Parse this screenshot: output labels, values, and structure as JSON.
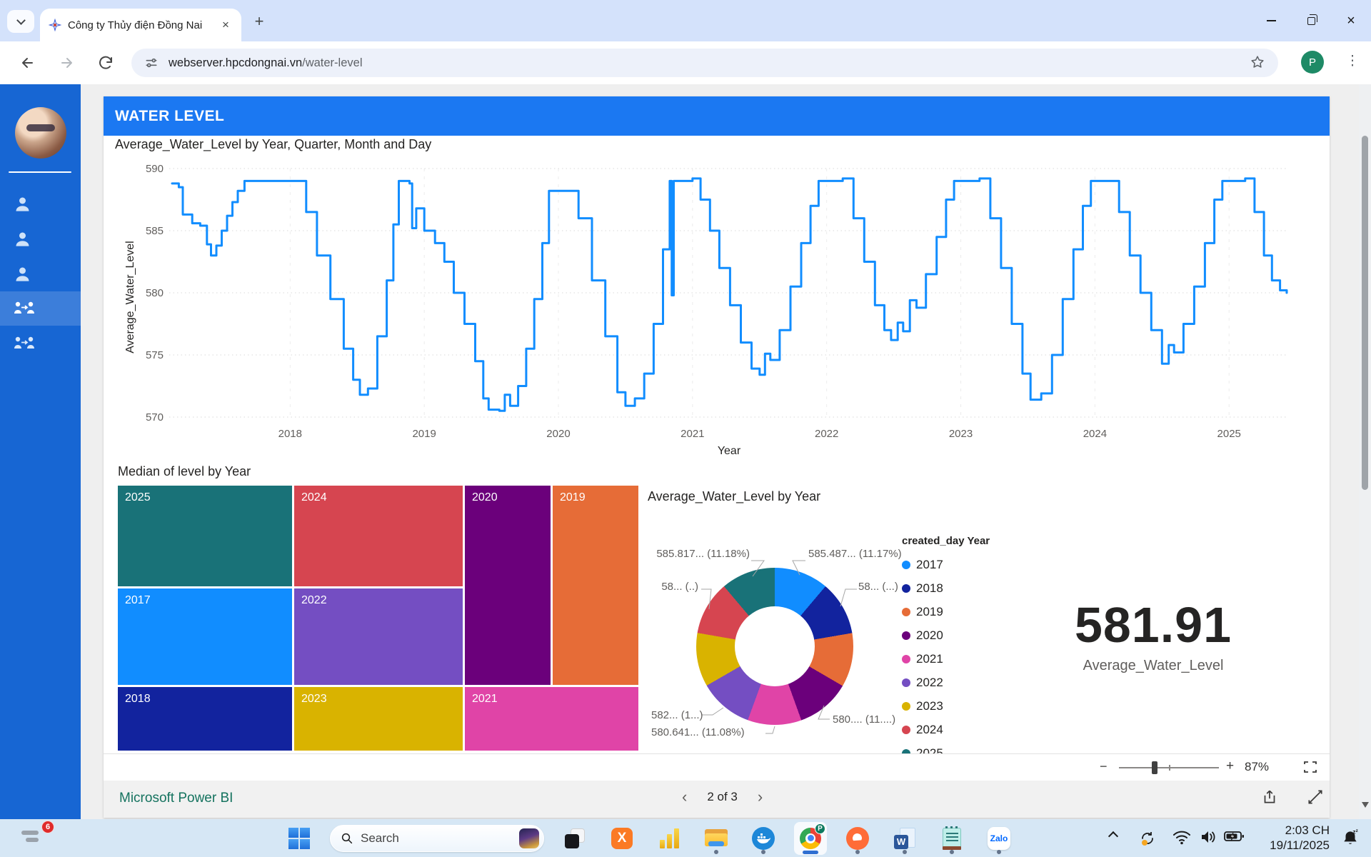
{
  "browser": {
    "tab": {
      "title": "Công ty Thủy điện Đồng Nai"
    },
    "url": {
      "host": "webserver.hpcdongnai.vn",
      "path": "/water-level"
    },
    "profile_initial": "P"
  },
  "icons": {
    "close": "×",
    "plus": "+",
    "minus": "−",
    "kebab": "⋮",
    "chevron_left": "‹",
    "chevron_right": "›"
  },
  "app": {
    "header": "WATER LEVEL"
  },
  "chart_data": [
    {
      "type": "line",
      "title": "Average_Water_Level by Year, Quarter, Month and Day",
      "xlabel": "Year",
      "ylabel": "Average_Water_Level",
      "ylim": [
        570,
        590
      ],
      "yticks": [
        570,
        575,
        580,
        585,
        590
      ],
      "xticks": [
        2018,
        2019,
        2020,
        2021,
        2022,
        2023,
        2024,
        2025
      ],
      "xlim": [
        2017.12,
        2025.43
      ],
      "grid": true,
      "series": [
        {
          "name": "Average_Water_Level",
          "color": "#118DFF",
          "points": [
            [
              2017.12,
              588.8
            ],
            [
              2017.17,
              588.5
            ],
            [
              2017.2,
              586.3
            ],
            [
              2017.27,
              585.6
            ],
            [
              2017.33,
              585.4
            ],
            [
              2017.38,
              583.9
            ],
            [
              2017.41,
              583.0
            ],
            [
              2017.45,
              583.8
            ],
            [
              2017.49,
              585.0
            ],
            [
              2017.53,
              586.2
            ],
            [
              2017.57,
              587.3
            ],
            [
              2017.61,
              588.2
            ],
            [
              2017.66,
              589.0
            ],
            [
              2018.06,
              589.0
            ],
            [
              2018.12,
              586.5
            ],
            [
              2018.2,
              583.0
            ],
            [
              2018.3,
              579.5
            ],
            [
              2018.4,
              575.5
            ],
            [
              2018.47,
              573.0
            ],
            [
              2018.52,
              571.8
            ],
            [
              2018.58,
              572.3
            ],
            [
              2018.65,
              576.5
            ],
            [
              2018.72,
              581.0
            ],
            [
              2018.77,
              585.5
            ],
            [
              2018.81,
              589.0
            ],
            [
              2018.89,
              588.8
            ],
            [
              2018.91,
              585.2
            ],
            [
              2018.94,
              586.8
            ],
            [
              2019.0,
              585.0
            ],
            [
              2019.08,
              584.0
            ],
            [
              2019.15,
              582.5
            ],
            [
              2019.22,
              580.0
            ],
            [
              2019.3,
              577.5
            ],
            [
              2019.38,
              574.5
            ],
            [
              2019.44,
              571.5
            ],
            [
              2019.48,
              570.6
            ],
            [
              2019.56,
              570.5
            ],
            [
              2019.6,
              571.8
            ],
            [
              2019.64,
              570.9
            ],
            [
              2019.7,
              572.5
            ],
            [
              2019.76,
              575.5
            ],
            [
              2019.82,
              579.5
            ],
            [
              2019.88,
              584.0
            ],
            [
              2019.93,
              588.2
            ],
            [
              2020.08,
              588.2
            ],
            [
              2020.15,
              586.0
            ],
            [
              2020.25,
              581.0
            ],
            [
              2020.35,
              576.5
            ],
            [
              2020.44,
              572.0
            ],
            [
              2020.5,
              570.9
            ],
            [
              2020.57,
              571.5
            ],
            [
              2020.64,
              573.5
            ],
            [
              2020.71,
              577.5
            ],
            [
              2020.78,
              583.5
            ],
            [
              2020.83,
              589.0
            ],
            [
              2020.845,
              579.8
            ],
            [
              2020.86,
              589.0
            ],
            [
              2021.0,
              589.2
            ],
            [
              2021.06,
              587.5
            ],
            [
              2021.13,
              585.0
            ],
            [
              2021.2,
              582.0
            ],
            [
              2021.28,
              579.0
            ],
            [
              2021.36,
              576.0
            ],
            [
              2021.44,
              573.9
            ],
            [
              2021.5,
              573.4
            ],
            [
              2021.54,
              575.1
            ],
            [
              2021.58,
              574.6
            ],
            [
              2021.65,
              577.0
            ],
            [
              2021.73,
              580.5
            ],
            [
              2021.81,
              584.0
            ],
            [
              2021.88,
              587.0
            ],
            [
              2021.94,
              589.0
            ],
            [
              2022.12,
              589.2
            ],
            [
              2022.2,
              586.0
            ],
            [
              2022.28,
              582.5
            ],
            [
              2022.36,
              579.0
            ],
            [
              2022.43,
              577.0
            ],
            [
              2022.48,
              576.2
            ],
            [
              2022.53,
              577.6
            ],
            [
              2022.57,
              576.9
            ],
            [
              2022.62,
              579.4
            ],
            [
              2022.67,
              578.8
            ],
            [
              2022.74,
              581.5
            ],
            [
              2022.82,
              584.5
            ],
            [
              2022.89,
              587.5
            ],
            [
              2022.95,
              589.0
            ],
            [
              2023.14,
              589.2
            ],
            [
              2023.22,
              586.0
            ],
            [
              2023.3,
              582.0
            ],
            [
              2023.38,
              577.5
            ],
            [
              2023.46,
              573.5
            ],
            [
              2023.52,
              571.4
            ],
            [
              2023.6,
              571.9
            ],
            [
              2023.68,
              575.0
            ],
            [
              2023.76,
              579.5
            ],
            [
              2023.84,
              583.5
            ],
            [
              2023.91,
              587.0
            ],
            [
              2023.97,
              589.0
            ],
            [
              2024.1,
              589.0
            ],
            [
              2024.18,
              586.5
            ],
            [
              2024.26,
              583.0
            ],
            [
              2024.34,
              580.0
            ],
            [
              2024.42,
              577.0
            ],
            [
              2024.5,
              574.3
            ],
            [
              2024.55,
              575.8
            ],
            [
              2024.59,
              575.2
            ],
            [
              2024.66,
              577.5
            ],
            [
              2024.74,
              580.5
            ],
            [
              2024.82,
              584.0
            ],
            [
              2024.89,
              587.5
            ],
            [
              2024.95,
              589.0
            ],
            [
              2025.12,
              589.2
            ],
            [
              2025.19,
              586.5
            ],
            [
              2025.26,
              583.0
            ],
            [
              2025.32,
              581.0
            ],
            [
              2025.38,
              580.2
            ],
            [
              2025.43,
              580.0
            ]
          ]
        }
      ]
    },
    {
      "type": "treemap",
      "title": "Median of level by Year",
      "tiles": [
        {
          "year": "2025",
          "color": "#197278"
        },
        {
          "year": "2024",
          "color": "#D64550"
        },
        {
          "year": "2020",
          "color": "#6B007B"
        },
        {
          "year": "2019",
          "color": "#E66C37"
        },
        {
          "year": "2017",
          "color": "#118DFF"
        },
        {
          "year": "2022",
          "color": "#744EC2"
        },
        {
          "year": "2018",
          "color": "#12239E"
        },
        {
          "year": "2023",
          "color": "#D9B300"
        },
        {
          "year": "2021",
          "color": "#E044A7"
        }
      ]
    },
    {
      "type": "donut",
      "title": "Average_Water_Level by Year",
      "legend_title": "created_day Year",
      "legend_position": "right",
      "slices": [
        {
          "year": "2017",
          "pct": 11.17,
          "color": "#118DFF",
          "callout": "585.487... (11.17%)"
        },
        {
          "year": "2018",
          "pct": 11.12,
          "color": "#12239E",
          "callout": "58... (...)"
        },
        {
          "year": "2019",
          "pct": 11.11,
          "color": "#E66C37",
          "callout": ""
        },
        {
          "year": "2020",
          "pct": 11.1,
          "color": "#6B007B",
          "callout": "580.... (11....)"
        },
        {
          "year": "2021",
          "pct": 11.08,
          "color": "#E044A7",
          "callout": "580.641... (11.08%)"
        },
        {
          "year": "2022",
          "pct": 11.09,
          "color": "#744EC2",
          "callout": "582... (1...)"
        },
        {
          "year": "2023",
          "pct": 11.07,
          "color": "#D9B300",
          "callout": ""
        },
        {
          "year": "2024",
          "pct": 11.08,
          "color": "#D64550",
          "callout": "58... (..)"
        },
        {
          "year": "2025",
          "pct": 11.18,
          "color": "#197278",
          "callout": "585.817... (11.18%)"
        }
      ]
    },
    {
      "type": "kpi",
      "value": "581.91",
      "label": "Average_Water_Level"
    }
  ],
  "report_footer": {
    "brand": "Microsoft Power BI",
    "page_indicator": "2 of 3",
    "zoom_percent": "87%"
  },
  "sidebar": {
    "items": [
      {
        "icon": "user"
      },
      {
        "icon": "user"
      },
      {
        "icon": "user"
      },
      {
        "icon": "user-switch",
        "selected": true
      },
      {
        "icon": "user-switch"
      }
    ]
  },
  "taskbar": {
    "badge_count": "6",
    "search_placeholder": "Search",
    "apps": [
      {
        "name": "overlapping-squares-app",
        "running": false
      },
      {
        "name": "xampp",
        "label": "X",
        "running": false
      },
      {
        "name": "power-bi",
        "running": false
      },
      {
        "name": "file-explorer",
        "running": true
      },
      {
        "name": "docker",
        "running": true
      },
      {
        "name": "chrome",
        "badge": "P",
        "running": true,
        "active": true
      },
      {
        "name": "postman",
        "running": true
      },
      {
        "name": "word",
        "label": "W",
        "running": true
      },
      {
        "name": "notepad",
        "running": true
      },
      {
        "name": "zalo",
        "label": "Zalo",
        "running": true
      }
    ],
    "tray": {
      "time": "2:03 CH",
      "date": "19/11/2025"
    }
  }
}
